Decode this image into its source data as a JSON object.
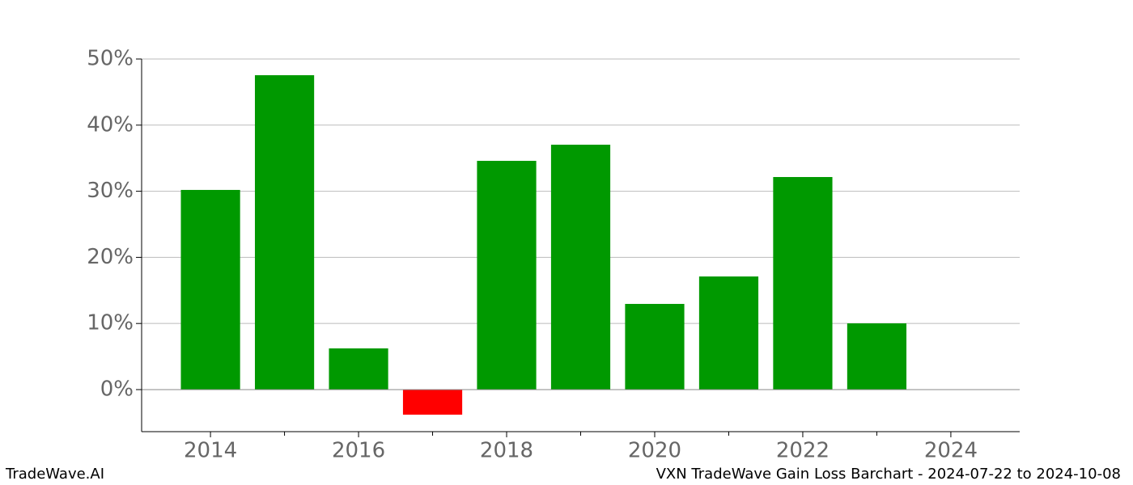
{
  "chart_data": {
    "type": "bar",
    "title": "VXN TradeWave Gain Loss Barchart - 2024-07-22 to 2024-10-08",
    "watermark": "TradeWave.AI",
    "x": [
      2014,
      2015,
      2016,
      2017,
      2018,
      2019,
      2020,
      2021,
      2022,
      2023
    ],
    "values": [
      30.2,
      47.55,
      6.23,
      -3.79,
      34.6,
      37.04,
      12.96,
      17.11,
      32.15,
      10.02
    ],
    "positive_color": "#009900",
    "negative_color": "#ff0000",
    "xlim": [
      2013.07,
      2024.93
    ],
    "xticks": [
      2014,
      2016,
      2018,
      2020,
      2022,
      2024
    ],
    "xminorticks": [
      2015,
      2017,
      2019,
      2021,
      2023
    ],
    "ylim": [
      -6.36,
      50
    ],
    "yticks": [
      {
        "value": 0,
        "label": "0%"
      },
      {
        "value": 10,
        "label": "10%"
      },
      {
        "value": 20,
        "label": "20%"
      },
      {
        "value": 30,
        "label": "30%"
      },
      {
        "value": 40,
        "label": "40%"
      },
      {
        "value": 50,
        "label": "50%"
      }
    ],
    "grid": true
  }
}
